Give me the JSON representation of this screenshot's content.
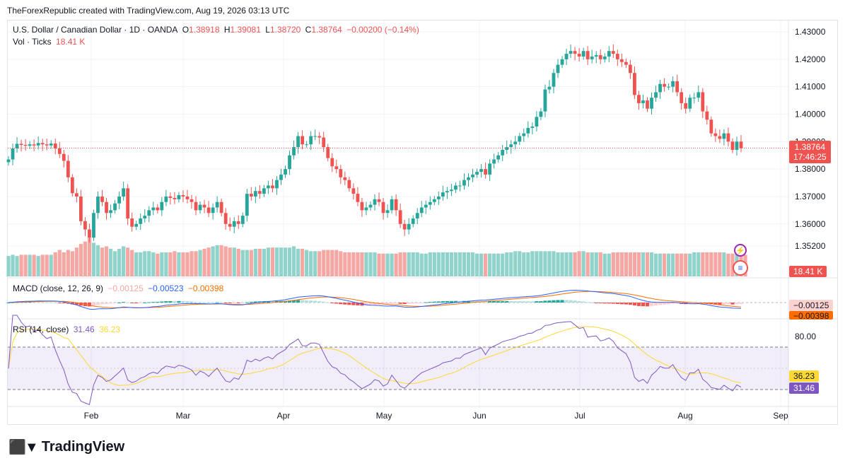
{
  "header": {
    "credit": "TheForexRepublic created with TradingView.com, Aug 19, 2026 03:13 UTC"
  },
  "legend": {
    "symbol": "U.S. Dollar / Canadian Dollar · 1D · OANDA",
    "o_label": "O",
    "o_value": "1.38918",
    "h_label": "H",
    "h_value": "1.39081",
    "l_label": "L",
    "l_value": "1.38720",
    "c_label": "C",
    "c_value": "1.38764",
    "change": "−0.00200 (−0.14%)",
    "vol_label": "Vol · Ticks",
    "vol_value": "18.41 K"
  },
  "macd_legend": {
    "label": "MACD (close, 12, 26, 9)",
    "hist": "−0.00125",
    "macd": "−0.00523",
    "signal": "−0.00398"
  },
  "rsi_legend": {
    "label": "RSI (14, close)",
    "rsi": "31.46",
    "ma": "36.23"
  },
  "badges": {
    "price": "1.38764",
    "countdown": "17:46:25",
    "volume": "18.41 K",
    "macd_hist": "−0.00125",
    "macd_signal": "−0.00398",
    "rsi_ma": "36.23",
    "rsi": "31.46"
  },
  "logo_text": "TradingView",
  "colors": {
    "up": "#26a69a",
    "down": "#ef5350",
    "up_vol": "#8fd3ca",
    "down_vol": "#f5a7a4",
    "macd": "#2962ff",
    "signal": "#ff6d00",
    "rsi": "#7e57c2",
    "rsi_ma": "#fdd835"
  },
  "chart_data": [
    {
      "type": "candlestick",
      "title": "U.S. Dollar / Canadian Dollar · 1D · OANDA",
      "price_axis_ticks": [
        "1.43000",
        "1.42000",
        "1.41000",
        "1.40000",
        "1.39000",
        "1.38000",
        "1.37000",
        "1.36000",
        "1.35200"
      ],
      "ylim": [
        1.349,
        1.433
      ],
      "x_ticks": [
        "Feb",
        "Mar",
        "Apr",
        "May",
        "Jun",
        "Jul",
        "Aug",
        "Sep"
      ],
      "last_close": 1.38764,
      "close_series": [
        1.3835,
        1.3875,
        1.3892,
        1.3888,
        1.3885,
        1.389,
        1.3886,
        1.3895,
        1.389,
        1.3886,
        1.3893,
        1.3875,
        1.3855,
        1.383,
        1.377,
        1.3712,
        1.37,
        1.361,
        1.358,
        1.355,
        1.364,
        1.37,
        1.368,
        1.364,
        1.365,
        1.3675,
        1.37,
        1.373,
        1.362,
        1.359,
        1.36,
        1.362,
        1.363,
        1.365,
        1.366,
        1.365,
        1.368,
        1.37,
        1.3695,
        1.369,
        1.3705,
        1.37,
        1.369,
        1.368,
        1.365,
        1.367,
        1.366,
        1.364,
        1.366,
        1.368,
        1.364,
        1.36,
        1.359,
        1.361,
        1.36,
        1.363,
        1.371,
        1.37,
        1.372,
        1.371,
        1.373,
        1.374,
        1.373,
        1.376,
        1.378,
        1.38,
        1.385,
        1.388,
        1.392,
        1.389,
        1.389,
        1.392,
        1.392,
        1.3915,
        1.388,
        1.384,
        1.381,
        1.38,
        1.377,
        1.376,
        1.373,
        1.371,
        1.368,
        1.365,
        1.366,
        1.367,
        1.369,
        1.368,
        1.364,
        1.365,
        1.369,
        1.365,
        1.36,
        1.358,
        1.36,
        1.362,
        1.364,
        1.366,
        1.367,
        1.368,
        1.369,
        1.37,
        1.3715,
        1.372,
        1.3725,
        1.374,
        1.374,
        1.376,
        1.377,
        1.378,
        1.379,
        1.38,
        1.378,
        1.382,
        1.3835,
        1.385,
        1.387,
        1.388,
        1.389,
        1.39,
        1.392,
        1.393,
        1.395,
        1.3955,
        1.399,
        1.401,
        1.409,
        1.41,
        1.415,
        1.418,
        1.42,
        1.422,
        1.423,
        1.422,
        1.421,
        1.423,
        1.42,
        1.421,
        1.4215,
        1.42,
        1.421,
        1.423,
        1.422,
        1.42,
        1.419,
        1.418,
        1.415,
        1.407,
        1.404,
        1.405,
        1.402,
        1.406,
        1.408,
        1.411,
        1.41,
        1.41,
        1.412,
        1.408,
        1.404,
        1.402,
        1.406,
        1.406,
        1.408,
        1.401,
        1.398,
        1.393,
        1.392,
        1.391,
        1.393,
        1.39,
        1.387,
        1.39,
        1.3876
      ]
    },
    {
      "type": "bar",
      "title": "Vol · Ticks",
      "last_value": "18.41 K",
      "values": [
        37,
        38,
        37,
        38,
        38,
        38,
        38,
        37,
        38,
        38,
        38,
        40,
        42,
        40,
        42,
        41,
        44,
        47,
        49,
        52,
        48,
        46,
        44,
        45,
        43,
        41,
        43,
        45,
        44,
        42,
        40,
        40,
        41,
        41,
        40,
        39,
        40,
        40,
        40,
        41,
        40,
        40,
        40,
        41,
        41,
        42,
        43,
        44,
        45,
        46,
        46,
        45,
        44,
        44,
        43,
        42,
        42,
        42,
        43,
        43,
        43,
        44,
        44,
        44,
        44,
        44,
        44,
        45,
        43,
        43,
        42,
        41,
        41,
        41,
        42,
        42,
        42,
        42,
        41,
        40,
        40,
        40,
        40,
        40,
        40,
        40,
        40,
        39,
        39,
        39,
        39,
        39,
        40,
        40,
        40,
        40,
        40,
        39,
        39,
        40,
        40,
        40,
        40,
        40,
        40,
        40,
        40,
        40,
        40,
        40,
        39,
        39,
        39,
        39,
        39,
        39,
        39,
        40,
        40,
        41,
        41,
        40,
        40,
        41,
        41,
        41,
        41,
        41,
        41,
        40,
        40,
        40,
        40,
        40,
        41,
        41,
        40,
        40,
        40,
        40,
        39,
        39,
        40,
        40,
        40,
        40,
        40,
        40,
        40,
        40,
        40,
        40,
        39,
        39,
        39,
        39,
        39,
        39,
        39,
        39,
        39,
        40,
        40,
        40,
        40,
        40,
        40,
        40,
        40,
        39,
        39,
        39,
        39,
        38
      ]
    },
    {
      "type": "line",
      "title": "MACD (close, 12, 26, 9)",
      "series": [
        {
          "name": "MACD",
          "last": -0.00523
        },
        {
          "name": "Signal",
          "last": -0.00398
        },
        {
          "name": "Histogram",
          "last": -0.00125
        }
      ]
    },
    {
      "type": "line",
      "title": "RSI (14, close)",
      "y_ticks": [
        "80.00"
      ],
      "bands": [
        30,
        70
      ],
      "ylim": [
        25,
        90
      ],
      "series": [
        {
          "name": "RSI",
          "last": 31.46
        },
        {
          "name": "RSI-based MA",
          "last": 36.23
        }
      ]
    }
  ]
}
